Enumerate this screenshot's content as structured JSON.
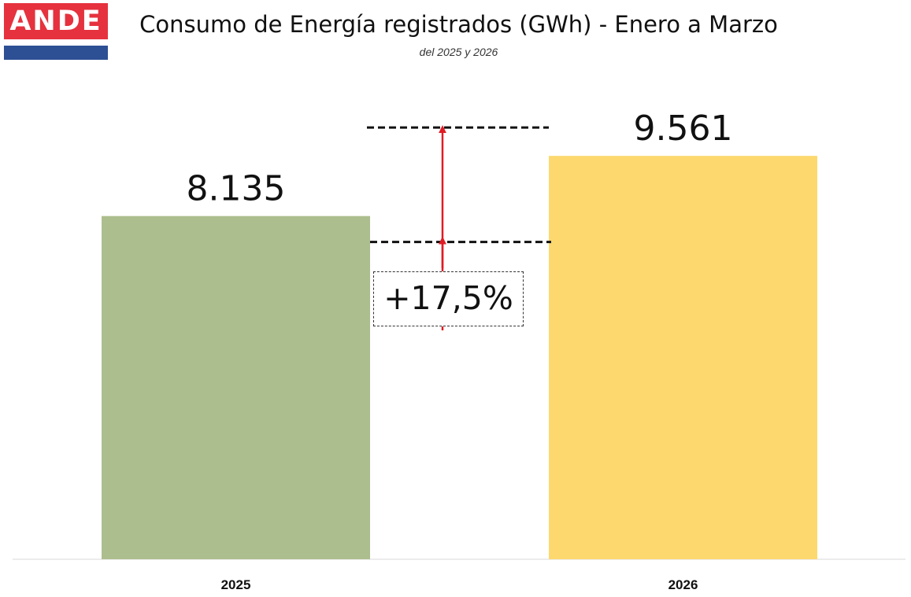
{
  "logo": {
    "text": "ANDE"
  },
  "colors": {
    "logo_red": "#e5323e",
    "logo_blue": "#2d4f94",
    "arrow": "#e01b24"
  },
  "chart_data": {
    "type": "bar",
    "title": "Consumo de Energía registrados (GWh) - Enero a Marzo",
    "subtitle": "del 2025 y 2026",
    "categories": [
      "2025",
      "2026"
    ],
    "values": [
      8135,
      9561
    ],
    "value_labels": [
      "8.135",
      "9.561"
    ],
    "bar_colors": [
      "#adbe8e",
      "#fdd86f"
    ],
    "ylim": [
      0,
      9900
    ],
    "xlabel": "",
    "ylabel": "",
    "grid": false,
    "annotation": {
      "label": "+17,5%",
      "from": "2025",
      "to": "2026"
    }
  }
}
